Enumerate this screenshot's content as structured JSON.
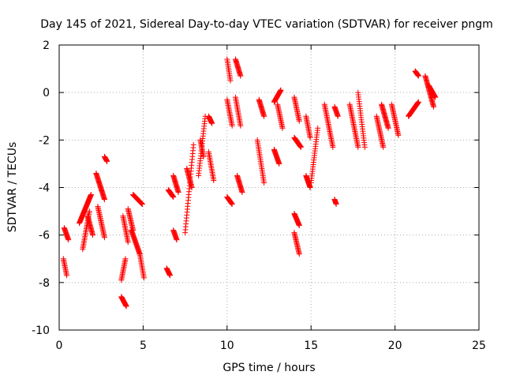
{
  "chart_data": {
    "type": "scatter",
    "title": "Day 145 of 2021, Sidereal Day-to-day VTEC variation (SDTVAR) for receiver pngm",
    "xlabel": "GPS time / hours",
    "ylabel": "SDTVAR / TECUs",
    "xlim": [
      0,
      25
    ],
    "ylim": [
      -10,
      2
    ],
    "xticks": [
      0,
      5,
      10,
      15,
      20,
      25
    ],
    "yticks": [
      -10,
      -8,
      -6,
      -4,
      -2,
      0,
      2
    ],
    "xtick_labels": [
      "0",
      "5",
      "10",
      "15",
      "20",
      "25"
    ],
    "ytick_labels": [
      "-10",
      "-8",
      "-6",
      "-4",
      "-2",
      "0",
      "2"
    ],
    "grid": true,
    "marker": "+",
    "color": "#ff0000",
    "segments": [
      {
        "t0": 0.25,
        "t1": 0.45,
        "y0": -7.0,
        "y1": -7.7
      },
      {
        "t0": 0.3,
        "t1": 0.55,
        "y0": -5.7,
        "y1": -6.2
      },
      {
        "t0": 1.2,
        "t1": 1.9,
        "y0": -5.5,
        "y1": -4.3
      },
      {
        "t0": 1.4,
        "t1": 1.8,
        "y0": -6.6,
        "y1": -5.0
      },
      {
        "t0": 1.7,
        "t1": 2.0,
        "y0": -5.2,
        "y1": -6.0
      },
      {
        "t0": 2.2,
        "t1": 2.7,
        "y0": -3.4,
        "y1": -4.5
      },
      {
        "t0": 2.3,
        "t1": 2.7,
        "y0": -4.8,
        "y1": -6.1
      },
      {
        "t0": 2.7,
        "t1": 2.85,
        "y0": -2.7,
        "y1": -2.9
      },
      {
        "t0": 3.7,
        "t1": 3.95,
        "y0": -7.9,
        "y1": -7.0
      },
      {
        "t0": 3.7,
        "t1": 4.0,
        "y0": -8.6,
        "y1": -9.0
      },
      {
        "t0": 3.8,
        "t1": 4.1,
        "y0": -5.2,
        "y1": -6.3
      },
      {
        "t0": 4.1,
        "t1": 4.4,
        "y0": -4.9,
        "y1": -5.8
      },
      {
        "t0": 4.3,
        "t1": 4.8,
        "y0": -5.8,
        "y1": -6.8
      },
      {
        "t0": 4.4,
        "t1": 4.95,
        "y0": -4.3,
        "y1": -4.7
      },
      {
        "t0": 4.8,
        "t1": 5.05,
        "y0": -6.8,
        "y1": -7.8
      },
      {
        "t0": 6.4,
        "t1": 6.6,
        "y0": -7.4,
        "y1": -7.7
      },
      {
        "t0": 6.5,
        "t1": 6.8,
        "y0": -4.1,
        "y1": -4.4
      },
      {
        "t0": 6.8,
        "t1": 7.1,
        "y0": -3.5,
        "y1": -4.2
      },
      {
        "t0": 6.8,
        "t1": 7.0,
        "y0": -5.8,
        "y1": -6.2
      },
      {
        "t0": 7.5,
        "t1": 8.0,
        "y0": -5.9,
        "y1": -2.2
      },
      {
        "t0": 7.6,
        "t1": 7.9,
        "y0": -3.2,
        "y1": -4.0
      },
      {
        "t0": 8.3,
        "t1": 8.7,
        "y0": -3.5,
        "y1": -1.0
      },
      {
        "t0": 8.4,
        "t1": 8.6,
        "y0": -2.0,
        "y1": -2.7
      },
      {
        "t0": 8.9,
        "t1": 9.1,
        "y0": -1.0,
        "y1": -1.3
      },
      {
        "t0": 8.9,
        "t1": 9.2,
        "y0": -2.5,
        "y1": -3.7
      },
      {
        "t0": 10.0,
        "t1": 10.2,
        "y0": 1.4,
        "y1": 0.5
      },
      {
        "t0": 10.0,
        "t1": 10.3,
        "y0": -0.3,
        "y1": -1.4
      },
      {
        "t0": 10.0,
        "t1": 10.3,
        "y0": -4.4,
        "y1": -4.7
      },
      {
        "t0": 10.5,
        "t1": 10.8,
        "y0": 1.4,
        "y1": 0.7
      },
      {
        "t0": 10.5,
        "t1": 10.8,
        "y0": -0.2,
        "y1": -1.4
      },
      {
        "t0": 10.6,
        "t1": 10.9,
        "y0": -3.5,
        "y1": -4.2
      },
      {
        "t0": 11.9,
        "t1": 12.2,
        "y0": -0.3,
        "y1": -1.0
      },
      {
        "t0": 11.8,
        "t1": 12.2,
        "y0": -2.0,
        "y1": -3.8
      },
      {
        "t0": 12.8,
        "t1": 13.2,
        "y0": -0.4,
        "y1": 0.1
      },
      {
        "t0": 13.0,
        "t1": 13.3,
        "y0": -0.5,
        "y1": -1.5
      },
      {
        "t0": 12.8,
        "t1": 13.1,
        "y0": -2.4,
        "y1": -3.0
      },
      {
        "t0": 14.0,
        "t1": 14.3,
        "y0": -0.2,
        "y1": -1.2
      },
      {
        "t0": 14.0,
        "t1": 14.4,
        "y0": -1.9,
        "y1": -2.3
      },
      {
        "t0": 14.0,
        "t1": 14.3,
        "y0": -5.1,
        "y1": -5.6
      },
      {
        "t0": 14.0,
        "t1": 14.3,
        "y0": -5.9,
        "y1": -6.8
      },
      {
        "t0": 14.7,
        "t1": 14.95,
        "y0": -1.0,
        "y1": -1.9
      },
      {
        "t0": 14.7,
        "t1": 14.95,
        "y0": -3.5,
        "y1": -4.0
      },
      {
        "t0": 15.0,
        "t1": 15.4,
        "y0": -3.8,
        "y1": -1.5
      },
      {
        "t0": 15.8,
        "t1": 16.3,
        "y0": -0.5,
        "y1": -2.3
      },
      {
        "t0": 16.4,
        "t1": 16.5,
        "y0": -4.5,
        "y1": -4.7
      },
      {
        "t0": 16.4,
        "t1": 16.6,
        "y0": -0.6,
        "y1": -1.0
      },
      {
        "t0": 17.3,
        "t1": 17.8,
        "y0": -0.5,
        "y1": -2.3
      },
      {
        "t0": 17.8,
        "t1": 18.2,
        "y0": 0.0,
        "y1": -2.3
      },
      {
        "t0": 18.9,
        "t1": 19.3,
        "y0": -1.0,
        "y1": -2.3
      },
      {
        "t0": 19.2,
        "t1": 19.6,
        "y0": -0.5,
        "y1": -1.5
      },
      {
        "t0": 19.8,
        "t1": 20.2,
        "y0": -0.5,
        "y1": -1.8
      },
      {
        "t0": 20.8,
        "t1": 21.4,
        "y0": -1.0,
        "y1": -0.4
      },
      {
        "t0": 21.2,
        "t1": 21.4,
        "y0": 0.9,
        "y1": 0.7
      },
      {
        "t0": 21.8,
        "t1": 22.3,
        "y0": 0.7,
        "y1": -0.6
      },
      {
        "t0": 22.0,
        "t1": 22.4,
        "y0": 0.3,
        "y1": -0.2
      }
    ]
  }
}
